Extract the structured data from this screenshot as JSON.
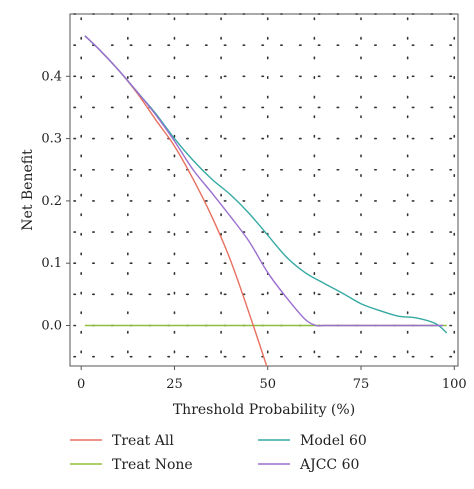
{
  "chart_data": {
    "type": "line",
    "xlabel": "Threshold Probability (%)",
    "ylabel": "Net Benefit",
    "xlim": [
      -3,
      101
    ],
    "ylim": [
      -0.065,
      0.5
    ],
    "xticks": [
      0,
      25,
      50,
      75,
      100
    ],
    "xtick_labels": [
      "0",
      "25",
      "50",
      "75",
      "100"
    ],
    "yticks": [
      0.0,
      0.1,
      0.2,
      0.3,
      0.4
    ],
    "ytick_labels": [
      "0.0",
      "0.1",
      "0.2",
      "0.3",
      "0.4"
    ],
    "grid": true,
    "legend_position": "bottom",
    "series": [
      {
        "name": "Treat All",
        "color": "#e8705f",
        "x": [
          1,
          5,
          10,
          15,
          20,
          25,
          30,
          35,
          40,
          45,
          50
        ],
        "y": [
          0.465,
          0.442,
          0.41,
          0.373,
          0.33,
          0.288,
          0.235,
          0.175,
          0.105,
          0.02,
          -0.07
        ]
      },
      {
        "name": "Treat None",
        "color": "#8dbf3a",
        "x": [
          1,
          98
        ],
        "y": [
          0.0,
          0.0
        ]
      },
      {
        "name": "Model 60",
        "color": "#36aaa3",
        "x": [
          1,
          5,
          10,
          15,
          20,
          25,
          30,
          35,
          40,
          45,
          50,
          55,
          60,
          65,
          70,
          75,
          80,
          85,
          90,
          95,
          98
        ],
        "y": [
          0.465,
          0.442,
          0.41,
          0.375,
          0.34,
          0.3,
          0.265,
          0.235,
          0.21,
          0.18,
          0.145,
          0.11,
          0.085,
          0.068,
          0.052,
          0.035,
          0.024,
          0.015,
          0.012,
          0.003,
          -0.012
        ]
      },
      {
        "name": "AJCC 60",
        "color": "#9b6fd0",
        "x": [
          1,
          5,
          10,
          15,
          20,
          25,
          30,
          35,
          40,
          45,
          50,
          55,
          60,
          63,
          65,
          70,
          80,
          90,
          97
        ],
        "y": [
          0.465,
          0.442,
          0.41,
          0.375,
          0.338,
          0.296,
          0.25,
          0.213,
          0.175,
          0.135,
          0.085,
          0.045,
          0.01,
          0.0,
          0.0,
          0.0,
          0.0,
          0.0,
          0.0
        ]
      }
    ]
  }
}
